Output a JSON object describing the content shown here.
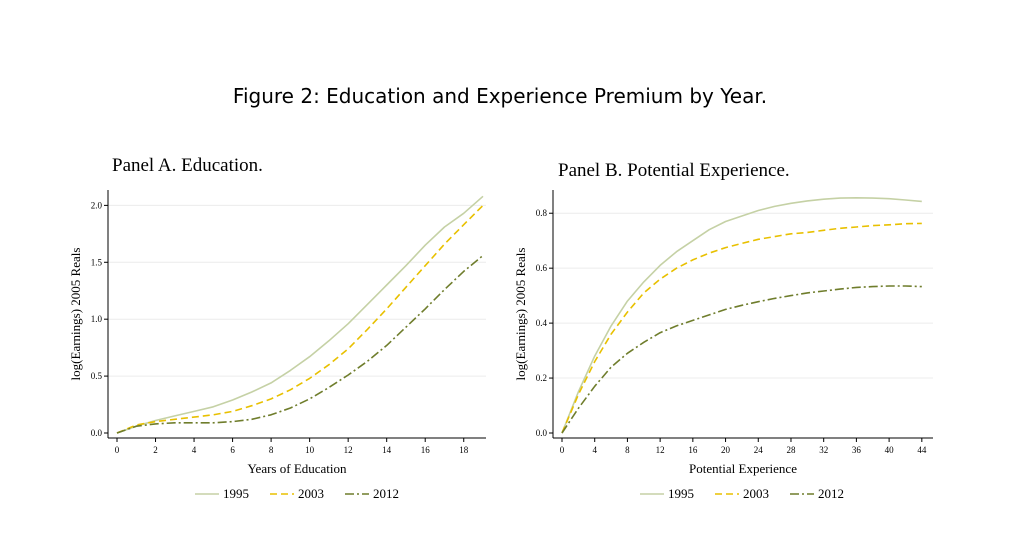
{
  "figure_title": "Figure 2: Education and Experience Premium by Year.",
  "colors": {
    "1995": "#c5d1a5",
    "2003": "#e8c000",
    "2012": "#6f7d2c"
  },
  "chart_data": [
    {
      "type": "line",
      "title": "Panel A. Education.",
      "xlabel": "Years of Education",
      "ylabel": "log(Earnings)  2005 Reals",
      "xlim": [
        0,
        19
      ],
      "ylim": [
        0,
        2.1
      ],
      "xticks": [
        "0",
        "2",
        "4",
        "6",
        "8",
        "10",
        "12",
        "14",
        "16",
        "18"
      ],
      "yticks": [
        "0.0",
        "0.5",
        "1.0",
        "1.5",
        "2.0"
      ],
      "x": [
        0,
        1,
        2,
        3,
        4,
        5,
        6,
        7,
        8,
        9,
        10,
        11,
        12,
        13,
        14,
        15,
        16,
        17,
        18,
        19
      ],
      "series": [
        {
          "name": "1995",
          "values": [
            0,
            0.06,
            0.11,
            0.15,
            0.19,
            0.23,
            0.29,
            0.36,
            0.44,
            0.55,
            0.67,
            0.81,
            0.96,
            1.13,
            1.3,
            1.47,
            1.65,
            1.81,
            1.93,
            2.08
          ]
        },
        {
          "name": "2003",
          "values": [
            0,
            0.07,
            0.1,
            0.12,
            0.14,
            0.16,
            0.19,
            0.24,
            0.3,
            0.38,
            0.48,
            0.6,
            0.74,
            0.91,
            1.09,
            1.28,
            1.47,
            1.66,
            1.83,
            2.0
          ]
        },
        {
          "name": "2012",
          "values": [
            0,
            0.06,
            0.08,
            0.09,
            0.09,
            0.09,
            0.1,
            0.12,
            0.16,
            0.22,
            0.3,
            0.4,
            0.51,
            0.63,
            0.77,
            0.93,
            1.09,
            1.26,
            1.42,
            1.56
          ]
        }
      ],
      "legend": [
        "1995",
        "2003",
        "2012"
      ]
    },
    {
      "type": "line",
      "title": "Panel B. Potential Experience.",
      "xlabel": "Potential Experience",
      "ylabel": "log(Earnings)  2005 Reals",
      "xlim": [
        0,
        45
      ],
      "ylim": [
        0,
        0.87
      ],
      "xticks": [
        "0",
        "4",
        "8",
        "12",
        "16",
        "20",
        "24",
        "28",
        "32",
        "36",
        "40",
        "44"
      ],
      "yticks": [
        "0.0",
        "0.2",
        "0.4",
        "0.6",
        "0.8"
      ],
      "x": [
        0,
        2,
        4,
        6,
        8,
        10,
        12,
        14,
        16,
        18,
        20,
        22,
        24,
        26,
        28,
        30,
        32,
        34,
        36,
        38,
        40,
        42,
        44
      ],
      "series": [
        {
          "name": "1995",
          "values": [
            0,
            0.15,
            0.28,
            0.39,
            0.48,
            0.55,
            0.61,
            0.66,
            0.7,
            0.74,
            0.77,
            0.79,
            0.81,
            0.825,
            0.836,
            0.845,
            0.851,
            0.855,
            0.856,
            0.855,
            0.853,
            0.848,
            0.843
          ]
        },
        {
          "name": "2003",
          "values": [
            0,
            0.14,
            0.26,
            0.36,
            0.44,
            0.51,
            0.56,
            0.6,
            0.63,
            0.655,
            0.675,
            0.69,
            0.705,
            0.715,
            0.725,
            0.73,
            0.738,
            0.745,
            0.75,
            0.755,
            0.758,
            0.762,
            0.763
          ]
        },
        {
          "name": "2012",
          "values": [
            0,
            0.09,
            0.17,
            0.24,
            0.29,
            0.33,
            0.365,
            0.39,
            0.41,
            0.43,
            0.45,
            0.465,
            0.478,
            0.49,
            0.5,
            0.51,
            0.517,
            0.524,
            0.53,
            0.533,
            0.535,
            0.535,
            0.533
          ]
        }
      ],
      "legend": [
        "1995",
        "2003",
        "2012"
      ]
    }
  ]
}
